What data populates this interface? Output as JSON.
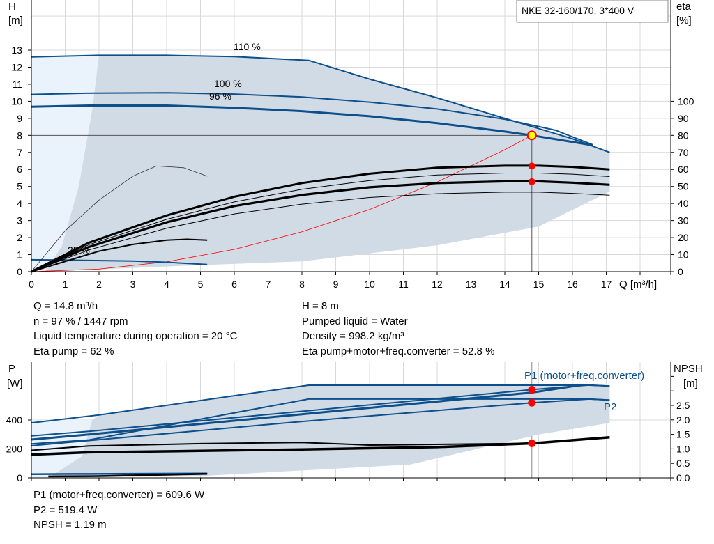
{
  "chart_data": [
    {
      "type": "line",
      "title": "NKE 32-160/170, 3*400 V",
      "xlabel": "Q [m³/h]",
      "ylabel": "H [m]",
      "ylabel_symbol": "H",
      "ylabel_unit": "[m]",
      "y2label_symbol": "eta",
      "y2label_unit": "[%]",
      "xlim": [
        0,
        18.9
      ],
      "ylim": [
        0,
        16
      ],
      "y2lim": [
        0,
        160
      ],
      "xticks": [
        0,
        1,
        2,
        3,
        4,
        5,
        6,
        7,
        8,
        9,
        10,
        11,
        12,
        13,
        14,
        15,
        16,
        17
      ],
      "yticks": [
        0,
        1,
        2,
        3,
        4,
        5,
        6,
        7,
        8,
        9,
        10,
        11,
        12,
        13
      ],
      "y2ticks": [
        0,
        10,
        20,
        30,
        40,
        50,
        60,
        70,
        80,
        90,
        100
      ],
      "grid": true,
      "colors": {
        "curve": "#0d4f8b",
        "area": "#d0dbe6",
        "area_light": "#eaf3fc",
        "system": "#ff0000",
        "point": "#ff0000",
        "op_fill": "#ffff00"
      },
      "series": [
        {
          "name": "110 %",
          "kind": "head",
          "points": [
            [
              0,
              12.6
            ],
            [
              2,
              12.7
            ],
            [
              4,
              12.7
            ],
            [
              6,
              12.62
            ],
            [
              8.2,
              12.4
            ],
            [
              10,
              11.3
            ],
            [
              12,
              10.2
            ],
            [
              14,
              9.0
            ],
            [
              16,
              7.8
            ],
            [
              17.1,
              7.0
            ]
          ]
        },
        {
          "name": "100 %",
          "kind": "head",
          "points": [
            [
              0,
              10.4
            ],
            [
              1.8,
              10.48
            ],
            [
              4,
              10.5
            ],
            [
              6,
              10.42
            ],
            [
              8,
              10.25
            ],
            [
              10,
              9.95
            ],
            [
              12,
              9.55
            ],
            [
              14,
              8.95
            ],
            [
              15.5,
              8.3
            ],
            [
              16.6,
              7.45
            ]
          ]
        },
        {
          "name": "96 %",
          "kind": "head",
          "points": [
            [
              0,
              9.68
            ],
            [
              1.7,
              9.75
            ],
            [
              4,
              9.75
            ],
            [
              6,
              9.62
            ],
            [
              8,
              9.42
            ],
            [
              10,
              9.12
            ],
            [
              12,
              8.72
            ],
            [
              14,
              8.22
            ],
            [
              14.8,
              8.0
            ],
            [
              16.6,
              7.42
            ]
          ]
        },
        {
          "name": "25 %",
          "kind": "head",
          "points": [
            [
              0,
              0.7
            ],
            [
              1,
              0.68
            ],
            [
              3,
              0.62
            ],
            [
              4,
              0.55
            ],
            [
              5.2,
              0.42
            ]
          ]
        },
        {
          "kind": "eta_pump",
          "points": [
            [
              0,
              0
            ],
            [
              1.7,
              1.7
            ],
            [
              4,
              3.3
            ],
            [
              6,
              4.4
            ],
            [
              8,
              5.2
            ],
            [
              10,
              5.75
            ],
            [
              12,
              6.1
            ],
            [
              14,
              6.22
            ],
            [
              15,
              6.22
            ],
            [
              16,
              6.15
            ],
            [
              17.1,
              6.0
            ]
          ]
        },
        {
          "kind": "eta_total",
          "points": [
            [
              0,
              0
            ],
            [
              1.7,
              1.45
            ],
            [
              4,
              2.9
            ],
            [
              6,
              3.85
            ],
            [
              8,
              4.5
            ],
            [
              10,
              4.95
            ],
            [
              12,
              5.2
            ],
            [
              14,
              5.3
            ],
            [
              15,
              5.3
            ],
            [
              16,
              5.22
            ],
            [
              17.1,
              5.1
            ]
          ]
        },
        {
          "kind": "eta_thin",
          "points": [
            [
              0,
              0
            ],
            [
              1,
              2.4
            ],
            [
              2,
              4.2
            ],
            [
              3,
              5.6
            ],
            [
              3.7,
              6.2
            ],
            [
              4.5,
              6.1
            ],
            [
              5.2,
              5.6
            ]
          ]
        },
        {
          "kind": "eta_low",
          "points": [
            [
              0,
              0
            ],
            [
              2,
              1.2
            ],
            [
              3,
              1.6
            ],
            [
              4,
              1.85
            ],
            [
              4.6,
              1.9
            ],
            [
              5.2,
              1.85
            ]
          ]
        }
      ],
      "system_curve": [
        [
          0,
          0
        ],
        [
          2,
          0.15
        ],
        [
          4,
          0.58
        ],
        [
          6,
          1.31
        ],
        [
          8,
          2.34
        ],
        [
          10,
          3.65
        ],
        [
          12,
          5.26
        ],
        [
          14,
          7.16
        ],
        [
          14.8,
          8.0
        ]
      ],
      "area_dark": [
        [
          2,
          12.7
        ],
        [
          4,
          12.7
        ],
        [
          6,
          12.62
        ],
        [
          8.2,
          12.4
        ],
        [
          10,
          11.3
        ],
        [
          12,
          10.2
        ],
        [
          14,
          9.0
        ],
        [
          16,
          7.8
        ],
        [
          17.1,
          7.0
        ],
        [
          17.1,
          4.7
        ],
        [
          15,
          2.65
        ],
        [
          12,
          1.55
        ],
        [
          8,
          0.6
        ],
        [
          5.2,
          0.4
        ],
        [
          0.4,
          0
        ],
        [
          0.9,
          1.5
        ],
        [
          1.4,
          5
        ],
        [
          1.8,
          9.5
        ]
      ],
      "area_light": [
        [
          0,
          0
        ],
        [
          0,
          12.6
        ],
        [
          2,
          12.7
        ],
        [
          1.8,
          9.5
        ],
        [
          1.4,
          5
        ],
        [
          0.9,
          1.5
        ],
        [
          0.4,
          0
        ]
      ],
      "operating_point": {
        "Q": 14.8,
        "H": 8
      },
      "eta_points": [
        {
          "Q": 14.8,
          "eta": 62
        },
        {
          "Q": 14.8,
          "eta": 52.8
        }
      ]
    },
    {
      "type": "line",
      "ylabel_symbol": "P",
      "ylabel_unit": "[W]",
      "y2label_symbol": "NPSH",
      "y2label_unit": "[m]",
      "xlim": [
        0,
        18.9
      ],
      "ylim": [
        0,
        800
      ],
      "yticks": [
        0,
        200,
        400,
        600
      ],
      "yticklabels": [
        "0",
        "200",
        "400",
        ""
      ],
      "y2ticks": [
        0,
        0.5,
        1,
        1.5,
        2,
        2.5,
        3,
        3.5
      ],
      "y2ticklabels": [
        "0.0",
        "0.5",
        "1.0",
        "1.5",
        "2.0",
        "2.5",
        "",
        ""
      ],
      "grid": true,
      "series": [
        {
          "kind": "power",
          "points": [
            [
              0,
              380
            ],
            [
              2,
              435
            ],
            [
              8.2,
              641
            ],
            [
              16.5,
              641
            ],
            [
              17.1,
              635
            ]
          ]
        },
        {
          "name": "P1 (motor+freq.converter)",
          "kind": "power",
          "points": [
            [
              0,
              290
            ],
            [
              1.7,
              322
            ],
            [
              8,
              460
            ],
            [
              14.8,
              610
            ],
            [
              16.5,
              642
            ],
            [
              17.1,
              635
            ]
          ]
        },
        {
          "kind": "power",
          "points": [
            [
              0,
              265
            ],
            [
              1.7,
              300
            ],
            [
              8,
              440
            ],
            [
              14.8,
              590
            ],
            [
              16.2,
              640
            ]
          ]
        },
        {
          "kind": "power",
          "points": [
            [
              0,
              235
            ],
            [
              1.7,
              262
            ],
            [
              8.2,
              545
            ],
            [
              16.5,
              545
            ],
            [
              17.1,
              538
            ]
          ]
        },
        {
          "name": "P2",
          "kind": "power",
          "points": [
            [
              0,
              222
            ],
            [
              1.7,
              258
            ],
            [
              8,
              390
            ],
            [
              14.8,
              519
            ],
            [
              16.5,
              545
            ],
            [
              17.1,
              538
            ]
          ]
        },
        {
          "kind": "power_low",
          "points": [
            [
              0,
              25
            ],
            [
              1.2,
              27
            ],
            [
              5.2,
              30
            ]
          ]
        },
        {
          "kind": "npsh",
          "points": [
            [
              0,
              0.8
            ],
            [
              1.7,
              0.88
            ],
            [
              5,
              0.93
            ],
            [
              8,
              0.98
            ],
            [
              12,
              1.06
            ],
            [
              14.8,
              1.19
            ],
            [
              17.1,
              1.4
            ]
          ]
        },
        {
          "kind": "npsh_thin",
          "points": [
            [
              0,
              0.95
            ],
            [
              1.7,
              1.1
            ],
            [
              5,
              1.18
            ],
            [
              8,
              1.22
            ],
            [
              10,
              1.13
            ],
            [
              14.8,
              1.19
            ]
          ]
        },
        {
          "kind": "npsh_low",
          "points": [
            [
              0.5,
              0.05
            ],
            [
              2,
              0.06
            ],
            [
              5.2,
              0.14
            ]
          ]
        }
      ],
      "area_dark": [
        [
          2,
          435
        ],
        [
          8.2,
          641
        ],
        [
          16.5,
          641
        ],
        [
          17.1,
          635
        ],
        [
          17.1,
          380
        ],
        [
          15,
          300
        ],
        [
          11.2,
          92
        ],
        [
          5.2,
          15
        ],
        [
          0.5,
          0
        ],
        [
          1.5,
          150
        ],
        [
          1.8,
          400
        ]
      ],
      "area_light": [
        [
          0,
          0
        ],
        [
          0,
          400
        ],
        [
          1.8,
          400
        ],
        [
          1.5,
          150
        ],
        [
          0.5,
          0
        ]
      ],
      "points": [
        {
          "Q": 14.8,
          "P": 609.6
        },
        {
          "Q": 14.8,
          "P": 519.4
        },
        {
          "Q": 14.8,
          "NPSH": 1.19
        }
      ]
    }
  ],
  "labels": {
    "h110": "110 %",
    "h100": "100 %",
    "h96": "96 %",
    "h25": "25 %",
    "p1": "P1 (motor+freq.converter)",
    "p2": "P2"
  },
  "info_top_left": [
    "Q = 14.8 m³/h",
    "n = 97 % / 1447 rpm",
    "Liquid temperature during operation = 20 °C",
    "Eta pump = 62 %"
  ],
  "info_top_right": [
    "H = 8 m",
    "Pumped liquid = Water",
    "Density = 998.2 kg/m³",
    "Eta pump+motor+freq.converter = 52.8 %"
  ],
  "info_bottom": [
    "P1 (motor+freq.converter) = 609.6 W",
    "P2 = 519.4 W",
    "NPSH = 1.19 m"
  ]
}
